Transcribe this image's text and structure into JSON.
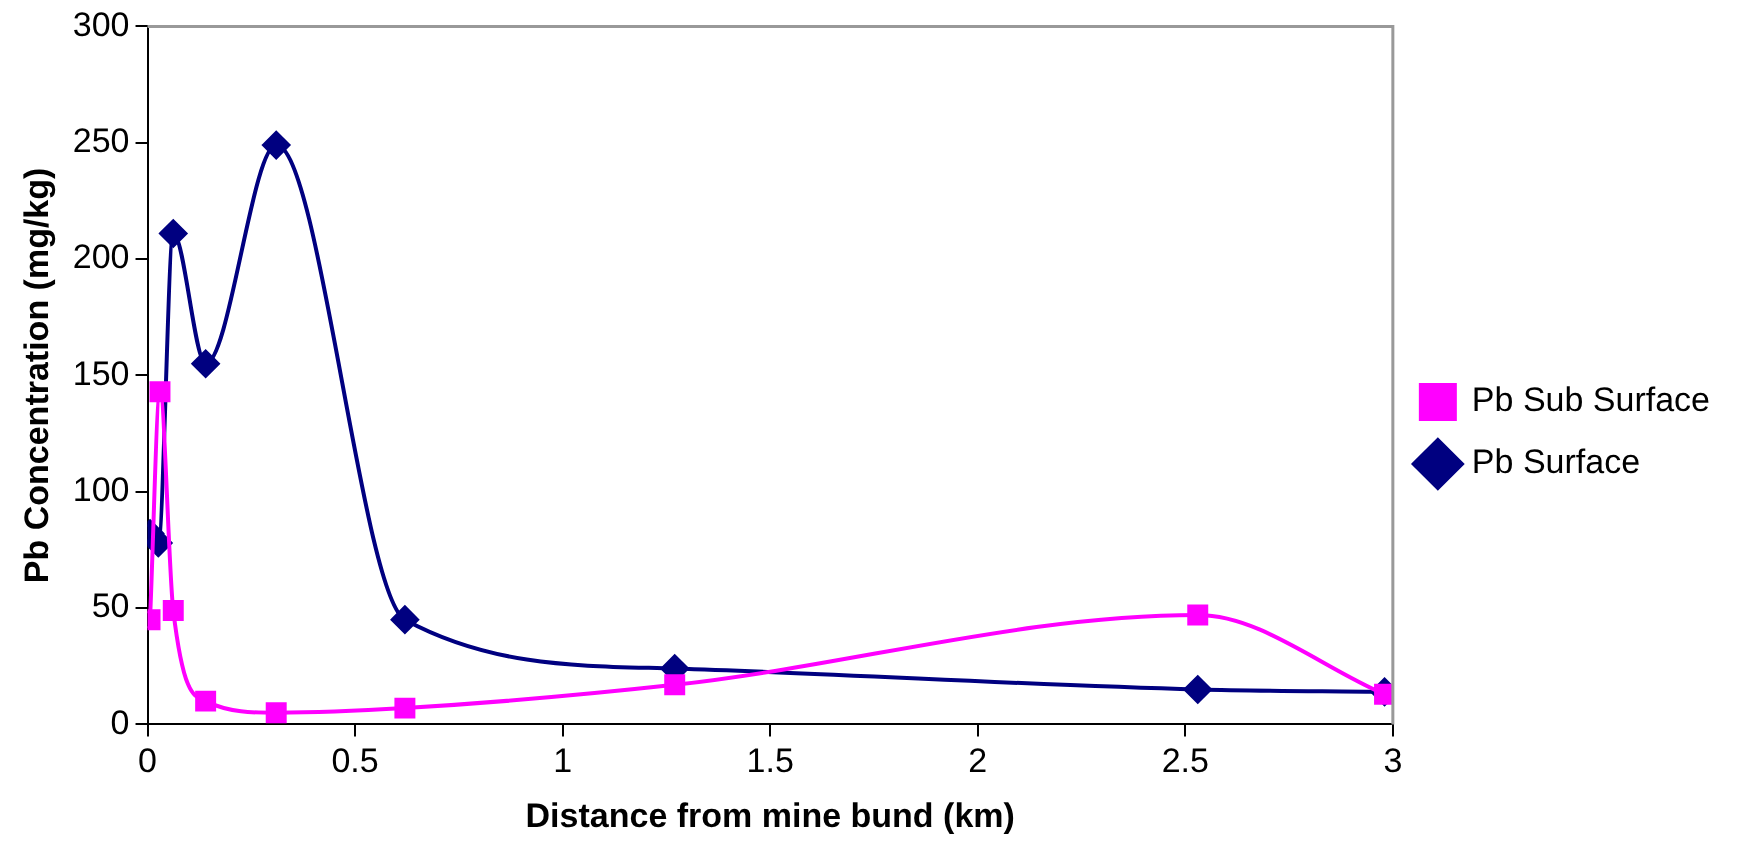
{
  "chart_data": {
    "type": "line",
    "xlabel": "Distance from mine bund (km)",
    "ylabel": "Pb Concentration (mg/kg)",
    "xlim": [
      0,
      3
    ],
    "xticks": [
      0,
      0.5,
      1,
      1.5,
      2,
      2.5,
      3
    ],
    "ylim": [
      0,
      300
    ],
    "yticks": [
      0,
      50,
      100,
      150,
      200,
      250,
      300
    ],
    "grid": false,
    "legend": "right",
    "line_style": "solid",
    "series": [
      {
        "name": "Pb Surface",
        "color": "#000080",
        "marker": "diamond",
        "x": [
          0.006,
          0.026,
          0.062,
          0.14,
          0.31,
          0.62,
          1.27,
          2.53,
          2.98
        ],
        "values": [
          82,
          78,
          211,
          155,
          249,
          45,
          24,
          15,
          14
        ]
      },
      {
        "name": "Pb Sub Surface",
        "color": "#ff00ff",
        "marker": "square",
        "x": [
          0.006,
          0.03,
          0.062,
          0.14,
          0.31,
          0.62,
          1.27,
          2.53,
          2.98
        ],
        "values": [
          45,
          143,
          49,
          10,
          5,
          7,
          17,
          47,
          13
        ]
      }
    ]
  }
}
